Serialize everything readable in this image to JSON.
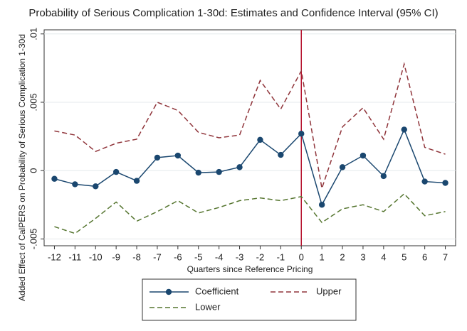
{
  "chart_data": {
    "type": "line",
    "title": "Probability of Serious Complication 1-30d: Estimates and Confidence Interval (95% CI)",
    "xlabel": "Quarters since Reference Pricing",
    "ylabel": "Added Effect of CalPERS on Probability of Serious Complication 1-30d",
    "x": [
      -12,
      -11,
      -10,
      -9,
      -8,
      -7,
      -6,
      -5,
      -4,
      -3,
      -2,
      -1,
      0,
      1,
      2,
      3,
      4,
      5,
      6,
      7
    ],
    "series": [
      {
        "name": "Coefficient",
        "color": "#1a476f",
        "dash": false,
        "marker": true,
        "values": [
          -0.0006,
          -0.001,
          -0.00115,
          -0.0001,
          -0.00075,
          0.00095,
          0.0011,
          -0.00015,
          -0.0001,
          0.00025,
          0.00225,
          0.00115,
          0.0027,
          -0.0025,
          0.00025,
          0.0011,
          -0.0004,
          0.003,
          -0.0008,
          -0.0009
        ]
      },
      {
        "name": "Upper",
        "color": "#90353b",
        "dash": true,
        "marker": false,
        "values": [
          0.0029,
          0.0026,
          0.0014,
          0.002,
          0.0023,
          0.005,
          0.0044,
          0.0028,
          0.0024,
          0.0026,
          0.0066,
          0.0045,
          0.0073,
          -0.0013,
          0.0032,
          0.0046,
          0.0023,
          0.0078,
          0.0017,
          0.0012
        ]
      },
      {
        "name": "Lower",
        "color": "#55752f",
        "dash": true,
        "marker": false,
        "values": [
          -0.0041,
          -0.0046,
          -0.0035,
          -0.0023,
          -0.0037,
          -0.003,
          -0.0022,
          -0.0031,
          -0.0027,
          -0.0022,
          -0.002,
          -0.0022,
          -0.0019,
          -0.0038,
          -0.0028,
          -0.0025,
          -0.003,
          -0.0017,
          -0.0033,
          -0.003
        ]
      }
    ],
    "xlim": [
      -12.5,
      7.5
    ],
    "xticks": [
      -12,
      -11,
      -10,
      -9,
      -8,
      -7,
      -6,
      -5,
      -4,
      -3,
      -2,
      -1,
      0,
      1,
      2,
      3,
      4,
      5,
      6,
      7
    ],
    "ylim": [
      -0.0055,
      0.0103
    ],
    "yticks": [
      {
        "value": -0.005,
        "label": "-.005"
      },
      {
        "value": 0,
        "label": "0"
      },
      {
        "value": 0.005,
        "label": ".005"
      },
      {
        "value": 0.01,
        "label": ".01"
      }
    ],
    "xline": {
      "value": 0,
      "color": "#b5122e"
    },
    "legend": "bottom"
  }
}
